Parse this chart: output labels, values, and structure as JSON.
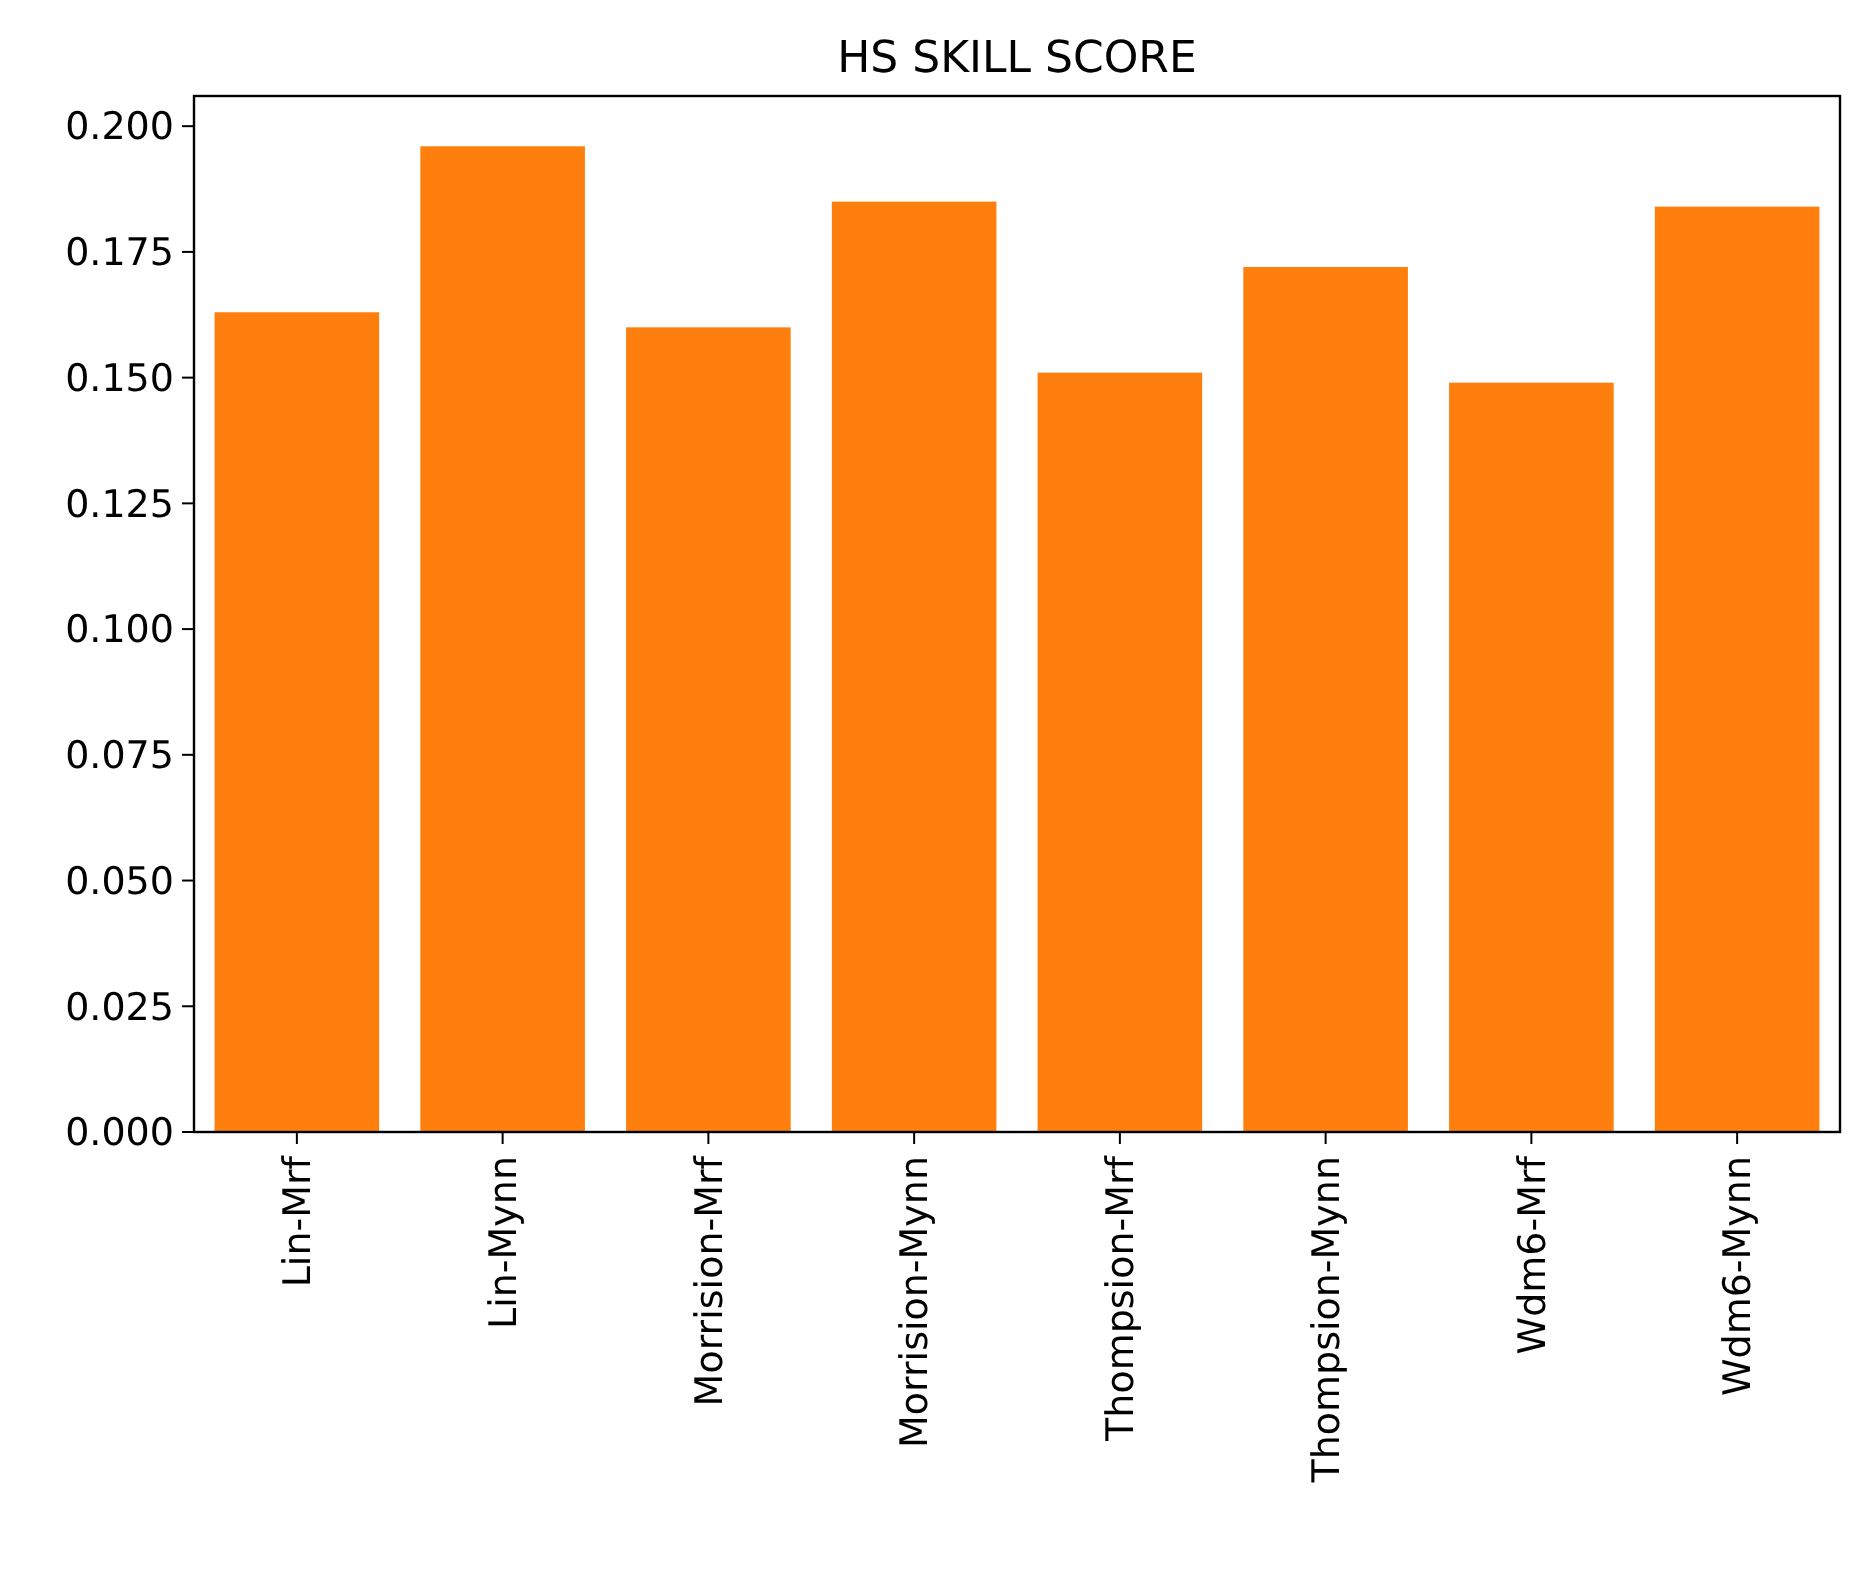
{
  "chart_data": {
    "type": "bar",
    "title": "HS SKILL SCORE",
    "categories": [
      "Lin-Mrf",
      "Lin-Mynn",
      "Morrision-Mrf",
      "Morrision-Mynn",
      "Thompsion-Mrf",
      "Thompsion-Mynn",
      "Wdm6-Mrf",
      "Wdm6-Mynn"
    ],
    "values": [
      0.163,
      0.196,
      0.16,
      0.185,
      0.151,
      0.172,
      0.149,
      0.184
    ],
    "color": "#ff7f0e",
    "ylim": [
      0,
      0.206
    ],
    "yticks": [
      {
        "value": 0,
        "label": "0.000"
      },
      {
        "value": 0.025,
        "label": "0.025"
      },
      {
        "value": 0.05,
        "label": "0.050"
      },
      {
        "value": 0.075,
        "label": "0.075"
      },
      {
        "value": 0.1,
        "label": "0.100"
      },
      {
        "value": 0.125,
        "label": "0.125"
      },
      {
        "value": 0.15,
        "label": "0.150"
      },
      {
        "value": 0.175,
        "label": "0.175"
      },
      {
        "value": 0.2,
        "label": "0.200"
      }
    ],
    "grid": false
  }
}
